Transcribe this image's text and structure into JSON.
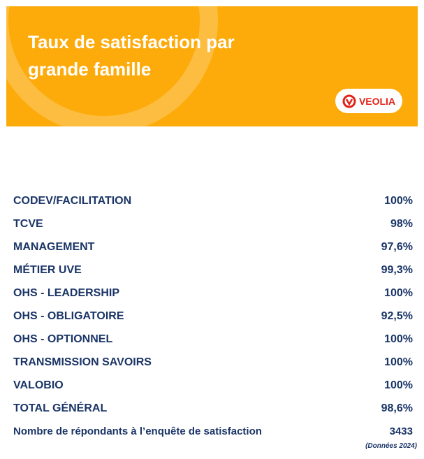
{
  "header": {
    "title": "Taux de satisfaction par grande famille",
    "logo": "VEOLIA"
  },
  "table": {
    "rows": [
      [
        "CODEV/FACILITATION",
        "100%"
      ],
      [
        "TCVE",
        "98%"
      ],
      [
        "MANAGEMENT",
        "97,6%"
      ],
      [
        "MÉTIER UVE",
        "99,3%"
      ],
      [
        "OHS - LEADERSHIP",
        "100%"
      ],
      [
        "OHS - OBLIGATOIRE",
        "92,5%"
      ],
      [
        "OHS - OPTIONNEL",
        "100%"
      ],
      [
        "TRANSMISSION SAVOIRS",
        "100%"
      ],
      [
        "VALOBIO",
        "100%"
      ],
      [
        "TOTAL GÉNÉRAL",
        "98,6%"
      ],
      [
        "Nombre de répondants à l’enquête de satisfaction",
        "3433"
      ]
    ]
  },
  "footnote": "(Données 2024)"
}
